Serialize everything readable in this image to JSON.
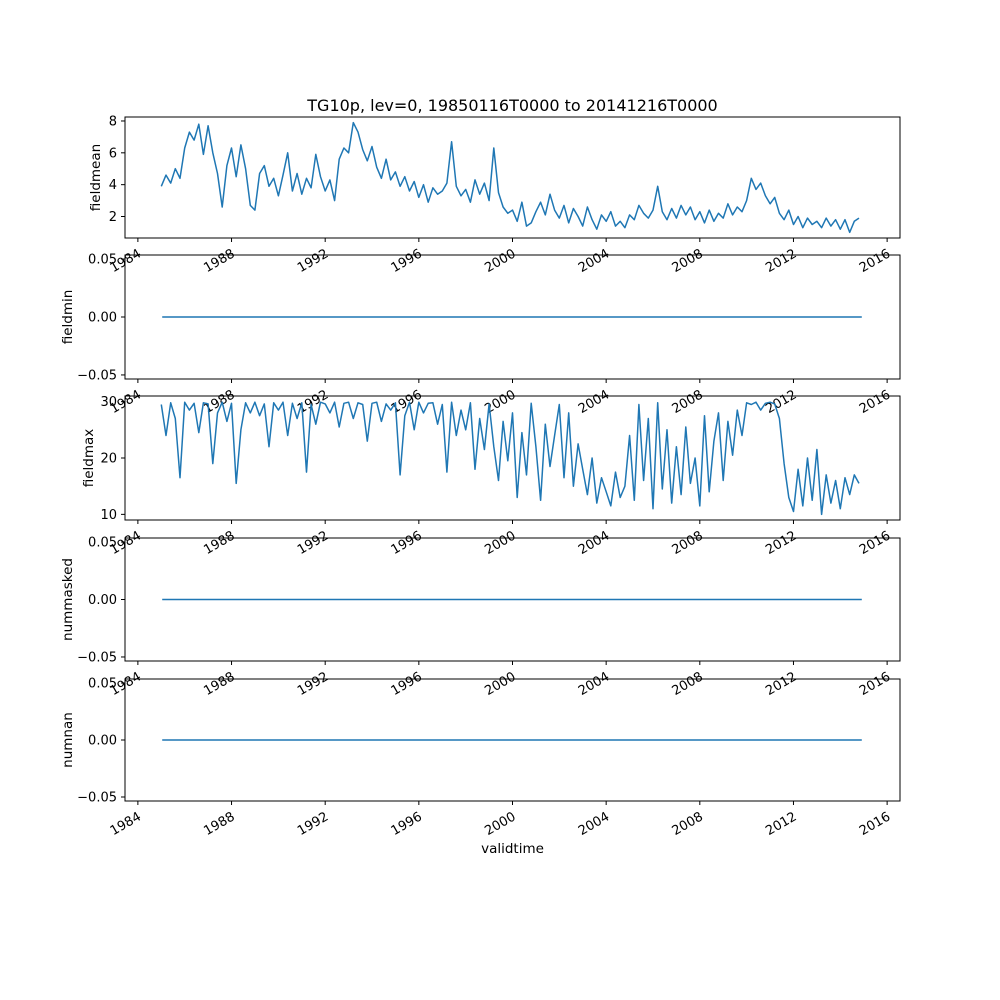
{
  "figure": {
    "title": "TG10p, lev=0, 19850116T0000 to 20141216T0000",
    "xlabel": "validtime",
    "line_color": "#1f77b4",
    "background": "#ffffff",
    "xlim": [
      1983.45,
      2016.55
    ],
    "xticks": [
      1984,
      1988,
      1992,
      1996,
      2000,
      2004,
      2008,
      2012,
      2016
    ],
    "xtick_labels": [
      "1984",
      "1988",
      "1992",
      "1996",
      "2000",
      "2004",
      "2008",
      "2012",
      "2016"
    ]
  },
  "chart_data": [
    {
      "type": "line",
      "name": "fieldmean",
      "ylabel": "fieldmean",
      "ylim": [
        0.65,
        8.25
      ],
      "yticks": [
        2,
        4,
        6,
        8
      ],
      "ytick_labels": [
        "2",
        "4",
        "6",
        "8"
      ],
      "x_start": 1985.0,
      "x_step": 0.2,
      "values": [
        3.9,
        4.6,
        4.1,
        5.0,
        4.4,
        6.3,
        7.3,
        6.8,
        7.8,
        5.9,
        7.7,
        6.0,
        4.7,
        2.6,
        5.2,
        6.3,
        4.5,
        6.5,
        5.0,
        2.7,
        2.4,
        4.7,
        5.2,
        3.9,
        4.4,
        3.3,
        4.6,
        6.0,
        3.6,
        4.7,
        3.4,
        4.4,
        3.8,
        5.9,
        4.5,
        3.6,
        4.3,
        3.0,
        5.6,
        6.3,
        6.0,
        7.9,
        7.3,
        6.2,
        5.5,
        6.4,
        5.1,
        4.4,
        5.6,
        4.3,
        4.8,
        3.9,
        4.5,
        3.6,
        4.2,
        3.2,
        4.0,
        2.9,
        3.8,
        3.4,
        3.6,
        4.1,
        6.7,
        3.9,
        3.3,
        3.7,
        2.9,
        4.3,
        3.4,
        4.1,
        3.0,
        6.3,
        3.5,
        2.6,
        2.2,
        2.4,
        1.7,
        2.9,
        1.4,
        1.6,
        2.3,
        2.9,
        2.1,
        3.4,
        2.4,
        1.9,
        2.7,
        1.6,
        2.5,
        2.0,
        1.4,
        2.6,
        1.8,
        1.2,
        2.1,
        1.7,
        2.3,
        1.4,
        1.7,
        1.3,
        2.1,
        1.8,
        2.7,
        2.2,
        1.9,
        2.4,
        3.9,
        2.3,
        1.8,
        2.5,
        1.9,
        2.7,
        2.1,
        2.6,
        1.8,
        2.3,
        1.6,
        2.4,
        1.7,
        2.2,
        1.9,
        2.8,
        2.1,
        2.6,
        2.3,
        3.0,
        4.4,
        3.7,
        4.1,
        3.3,
        2.8,
        3.2,
        2.2,
        1.8,
        2.4,
        1.5,
        2.0,
        1.3,
        1.9,
        1.5,
        1.7,
        1.3,
        1.9,
        1.4,
        1.8,
        1.2,
        1.8,
        1.0,
        1.7,
        1.9
      ]
    },
    {
      "type": "line",
      "name": "fieldmin",
      "ylabel": "fieldmin",
      "ylim": [
        -0.0535,
        0.0535
      ],
      "yticks": [
        -0.05,
        0,
        0.05
      ],
      "ytick_labels": [
        "−0.05",
        "0.00",
        "0.05"
      ],
      "x_start": 1985.04,
      "x_step": 29.88,
      "values": [
        0,
        0
      ]
    },
    {
      "type": "line",
      "name": "fieldmax",
      "ylabel": "fieldmax",
      "ylim": [
        9,
        31
      ],
      "yticks": [
        10,
        20,
        30
      ],
      "ytick_labels": [
        "10",
        "20",
        "30"
      ],
      "x_start": 1985.0,
      "x_step": 0.2,
      "values": [
        29.5,
        24.0,
        29.8,
        27.0,
        16.5,
        29.9,
        28.5,
        29.7,
        24.5,
        29.8,
        29.6,
        19.0,
        28.0,
        29.9,
        26.5,
        29.7,
        15.5,
        25.0,
        29.8,
        28.0,
        29.9,
        27.5,
        29.6,
        22.0,
        29.8,
        28.5,
        29.9,
        24.0,
        29.7,
        27.0,
        29.8,
        17.5,
        29.5,
        26.0,
        29.9,
        29.6,
        28.0,
        29.9,
        25.5,
        29.7,
        29.9,
        27.0,
        29.8,
        29.5,
        23.0,
        29.7,
        29.9,
        26.5,
        29.6,
        28.5,
        29.8,
        17.0,
        27.5,
        29.9,
        25.0,
        29.9,
        28.0,
        29.7,
        29.8,
        26.0,
        29.5,
        17.5,
        29.9,
        24.0,
        28.5,
        25.0,
        29.8,
        18.0,
        27.0,
        21.5,
        29.6,
        22.0,
        16.0,
        26.5,
        19.5,
        28.0,
        13.0,
        24.5,
        17.0,
        29.7,
        22.0,
        12.5,
        26.0,
        18.5,
        24.0,
        29.5,
        16.5,
        28.0,
        15.0,
        22.5,
        18.0,
        13.5,
        20.0,
        12.0,
        16.5,
        14.0,
        11.5,
        17.5,
        13.0,
        15.0,
        24.0,
        12.5,
        29.5,
        16.0,
        27.0,
        11.0,
        29.8,
        14.5,
        25.0,
        12.0,
        22.0,
        13.5,
        25.5,
        15.5,
        20.0,
        11.5,
        27.5,
        14.0,
        23.0,
        28.0,
        16.0,
        26.5,
        20.5,
        28.5,
        24.0,
        29.8,
        29.5,
        29.9,
        28.5,
        29.7,
        29.9,
        29.6,
        27.0,
        19.0,
        13.0,
        10.5,
        18.0,
        11.5,
        20.0,
        12.5,
        21.5,
        10.0,
        17.0,
        12.0,
        16.0,
        11.0,
        16.5,
        13.5,
        17.0,
        15.5
      ]
    },
    {
      "type": "line",
      "name": "nummasked",
      "ylabel": "nummasked",
      "ylim": [
        -0.0535,
        0.0535
      ],
      "yticks": [
        -0.05,
        0,
        0.05
      ],
      "ytick_labels": [
        "−0.05",
        "0.00",
        "0.05"
      ],
      "x_start": 1985.04,
      "x_step": 29.88,
      "values": [
        0,
        0
      ]
    },
    {
      "type": "line",
      "name": "numnan",
      "ylabel": "numnan",
      "ylim": [
        -0.0535,
        0.0535
      ],
      "yticks": [
        -0.05,
        0,
        0.05
      ],
      "ytick_labels": [
        "−0.05",
        "0.00",
        "0.05"
      ],
      "x_start": 1985.04,
      "x_step": 29.88,
      "values": [
        0,
        0
      ]
    }
  ]
}
